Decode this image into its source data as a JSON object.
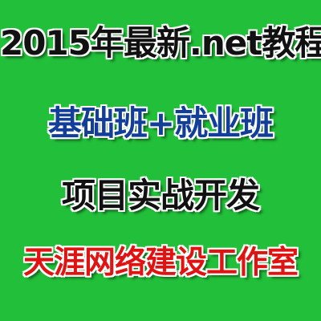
{
  "background_color": "#22bf3a",
  "text_outline_color": "#ffffff",
  "lines": [
    {
      "text": "2015年最新.net教程",
      "color": "#111111"
    },
    {
      "text": "基础班+就业班",
      "color": "#123d98"
    },
    {
      "text": "项目实战开发",
      "color": "#111111"
    },
    {
      "text": "天涯网络建设工作室",
      "color": "#e01313"
    }
  ]
}
